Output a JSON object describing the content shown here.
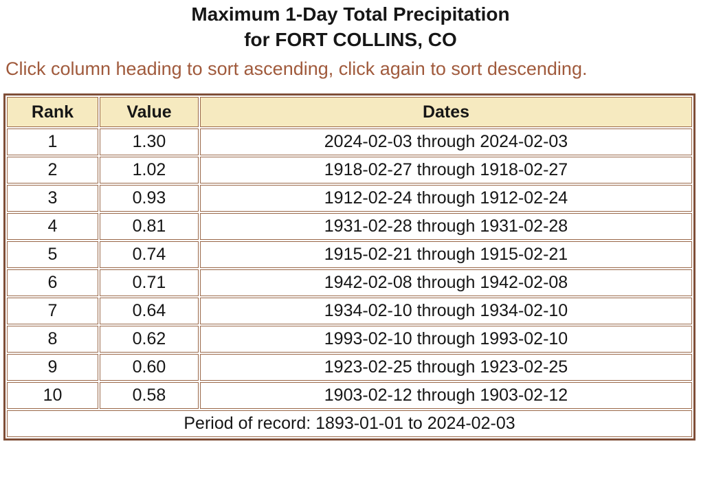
{
  "page": {
    "title_line1": "Maximum 1-Day Total Precipitation",
    "title_line2": "for FORT COLLINS, CO",
    "sort_hint": "Click column heading to sort ascending, click again to sort descending."
  },
  "colors": {
    "header_bg": "#f6eac0",
    "cell_border": "#996748",
    "outer_border": "#7f4e37",
    "hint_text": "#a05a3c",
    "body_text": "#161616"
  },
  "table": {
    "columns": [
      {
        "key": "rank",
        "label": "Rank"
      },
      {
        "key": "value",
        "label": "Value"
      },
      {
        "key": "dates",
        "label": "Dates"
      }
    ],
    "rows": [
      {
        "rank": "1",
        "value": "1.30",
        "dates": "2024-02-03 through 2024-02-03"
      },
      {
        "rank": "2",
        "value": "1.02",
        "dates": "1918-02-27 through 1918-02-27"
      },
      {
        "rank": "3",
        "value": "0.93",
        "dates": "1912-02-24 through 1912-02-24"
      },
      {
        "rank": "4",
        "value": "0.81",
        "dates": "1931-02-28 through 1931-02-28"
      },
      {
        "rank": "5",
        "value": "0.74",
        "dates": "1915-02-21 through 1915-02-21"
      },
      {
        "rank": "6",
        "value": "0.71",
        "dates": "1942-02-08 through 1942-02-08"
      },
      {
        "rank": "7",
        "value": "0.64",
        "dates": "1934-02-10 through 1934-02-10"
      },
      {
        "rank": "8",
        "value": "0.62",
        "dates": "1993-02-10 through 1993-02-10"
      },
      {
        "rank": "9",
        "value": "0.60",
        "dates": "1923-02-25 through 1923-02-25"
      },
      {
        "rank": "10",
        "value": "0.58",
        "dates": "1903-02-12 through 1903-02-12"
      }
    ],
    "footer": "Period of record: 1893-01-01 to 2024-02-03"
  }
}
